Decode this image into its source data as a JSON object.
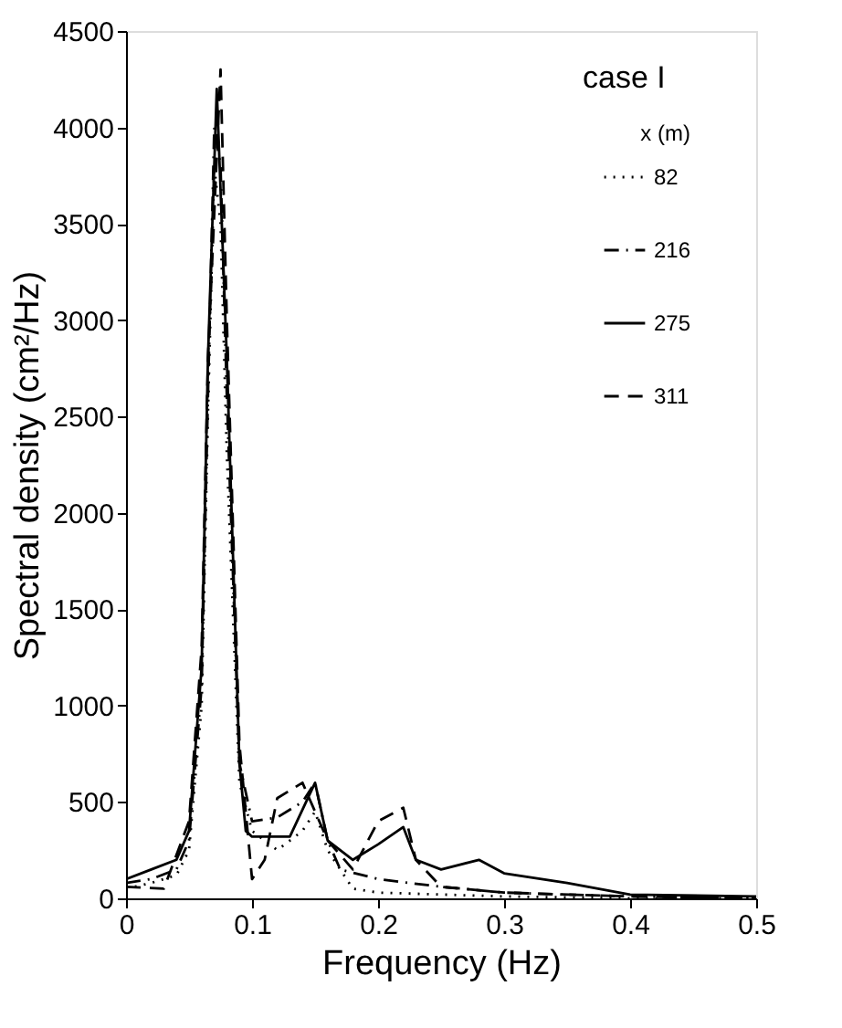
{
  "chart_data": {
    "type": "line",
    "xlabel": "Frequency (Hz)",
    "ylabel": "Spectral density (cm²/Hz)",
    "legend_title": "x (m)",
    "annotations": [
      "case I"
    ],
    "xlim": [
      0,
      0.5
    ],
    "xticks": [
      0,
      0.1,
      0.2,
      0.3,
      0.4,
      0.5
    ],
    "ylim": [
      0,
      4500
    ],
    "yticks": [
      0,
      500,
      1000,
      1500,
      2000,
      2500,
      3000,
      3500,
      4000,
      4500
    ],
    "grid": false,
    "legend": "top right",
    "series": [
      {
        "name": "82",
        "color": "#000000",
        "line_style": "dotted",
        "x": [
          0,
          0.02,
          0.04,
          0.05,
          0.06,
          0.065,
          0.07,
          0.075,
          0.08,
          0.09,
          0.1,
          0.12,
          0.14,
          0.15,
          0.16,
          0.18,
          0.2,
          0.25,
          0.3,
          0.4,
          0.5
        ],
        "values": [
          50,
          80,
          120,
          250,
          1000,
          2500,
          3800,
          3500,
          2300,
          600,
          350,
          250,
          350,
          450,
          250,
          50,
          30,
          20,
          10,
          0,
          0
        ]
      },
      {
        "name": "216",
        "color": "#000000",
        "line_style": "dashdot",
        "x": [
          0,
          0.02,
          0.04,
          0.05,
          0.06,
          0.065,
          0.07,
          0.075,
          0.08,
          0.09,
          0.1,
          0.12,
          0.14,
          0.15,
          0.16,
          0.17,
          0.2,
          0.25,
          0.3,
          0.4,
          0.5
        ],
        "values": [
          80,
          100,
          150,
          300,
          1100,
          2600,
          4000,
          3800,
          2600,
          700,
          400,
          420,
          500,
          600,
          300,
          150,
          100,
          60,
          30,
          10,
          0
        ]
      },
      {
        "name": "275",
        "color": "#000000",
        "line_style": "solid",
        "x": [
          0,
          0.02,
          0.04,
          0.05,
          0.06,
          0.065,
          0.072,
          0.08,
          0.09,
          0.095,
          0.1,
          0.13,
          0.15,
          0.16,
          0.18,
          0.2,
          0.22,
          0.23,
          0.25,
          0.28,
          0.3,
          0.35,
          0.4,
          0.5
        ],
        "values": [
          100,
          150,
          200,
          350,
          1200,
          2800,
          4200,
          2800,
          700,
          350,
          320,
          320,
          600,
          300,
          200,
          280,
          370,
          200,
          150,
          200,
          130,
          80,
          20,
          10
        ]
      },
      {
        "name": "311",
        "color": "#000000",
        "line_style": "dashed",
        "x": [
          0,
          0.03,
          0.05,
          0.06,
          0.065,
          0.075,
          0.08,
          0.09,
          0.1,
          0.11,
          0.12,
          0.14,
          0.16,
          0.18,
          0.2,
          0.22,
          0.23,
          0.25,
          0.3,
          0.4,
          0.5
        ],
        "values": [
          60,
          50,
          400,
          1300,
          2800,
          4300,
          3000,
          800,
          100,
          200,
          520,
          600,
          300,
          150,
          400,
          470,
          200,
          60,
          30,
          10,
          0
        ]
      }
    ]
  }
}
